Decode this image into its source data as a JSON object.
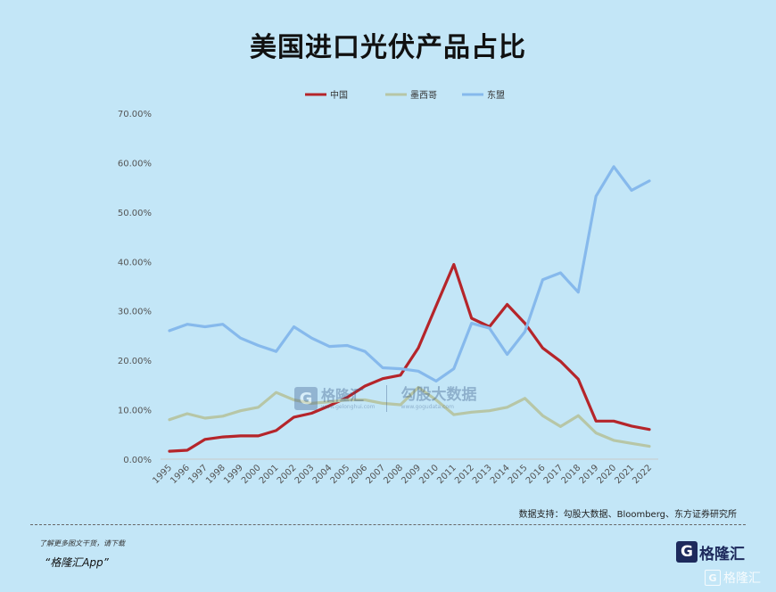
{
  "title": "美国进口光伏产品占比",
  "source_note": "数据支持：勾股大数据、Bloomberg、东方证券研究所",
  "footer": {
    "line1": "了解更多图文干货，请下载",
    "line2": "“格隆汇App”"
  },
  "watermark": {
    "brand_cn": "格隆汇",
    "brand_url": "www.gelonghui.com",
    "brand2_cn": "勾股大数据",
    "brand2_url": "www.gogudata.com"
  },
  "logo": {
    "mark": "G",
    "name": "格隆汇",
    "corner_name": "格隆汇"
  },
  "chart_data": {
    "type": "line",
    "categories": [
      "1995",
      "1996",
      "1997",
      "1998",
      "1999",
      "2000",
      "2001",
      "2002",
      "2003",
      "2004",
      "2005",
      "2006",
      "2007",
      "2008",
      "2009",
      "2010",
      "2011",
      "2012",
      "2013",
      "2014",
      "2015",
      "2016",
      "2017",
      "2018",
      "2019",
      "2020",
      "2021",
      "2022"
    ],
    "ylim": [
      0,
      0.7
    ],
    "yticks": [
      0,
      0.1,
      0.2,
      0.3,
      0.4,
      0.5,
      0.6,
      0.7
    ],
    "ytick_labels": [
      "0.00%",
      "10.00%",
      "20.00%",
      "30.00%",
      "40.00%",
      "50.00%",
      "60.00%",
      "70.00%"
    ],
    "legend_position": "top",
    "grid": false,
    "series": [
      {
        "name": "中国",
        "color": "#b5252a",
        "values": [
          0.016,
          0.018,
          0.04,
          0.045,
          0.047,
          0.047,
          0.058,
          0.085,
          0.093,
          0.108,
          0.125,
          0.148,
          0.163,
          0.17,
          0.225,
          0.31,
          0.394,
          0.285,
          0.268,
          0.313,
          0.275,
          0.225,
          0.198,
          0.162,
          0.077,
          0.077,
          0.067,
          0.06
        ]
      },
      {
        "name": "墨西哥",
        "color": "#b7c6a6",
        "values": [
          0.08,
          0.092,
          0.083,
          0.087,
          0.098,
          0.105,
          0.135,
          0.12,
          0.113,
          0.116,
          0.12,
          0.12,
          0.113,
          0.11,
          0.145,
          0.12,
          0.09,
          0.095,
          0.098,
          0.105,
          0.123,
          0.088,
          0.066,
          0.088,
          0.053,
          0.038,
          0.032,
          0.026
        ]
      },
      {
        "name": "东盟",
        "color": "#86b9ec",
        "values": [
          0.26,
          0.273,
          0.268,
          0.273,
          0.245,
          0.23,
          0.218,
          0.268,
          0.245,
          0.228,
          0.23,
          0.218,
          0.185,
          0.183,
          0.178,
          0.158,
          0.183,
          0.275,
          0.265,
          0.212,
          0.258,
          0.363,
          0.377,
          0.338,
          0.532,
          0.592,
          0.544,
          0.563
        ]
      }
    ]
  }
}
